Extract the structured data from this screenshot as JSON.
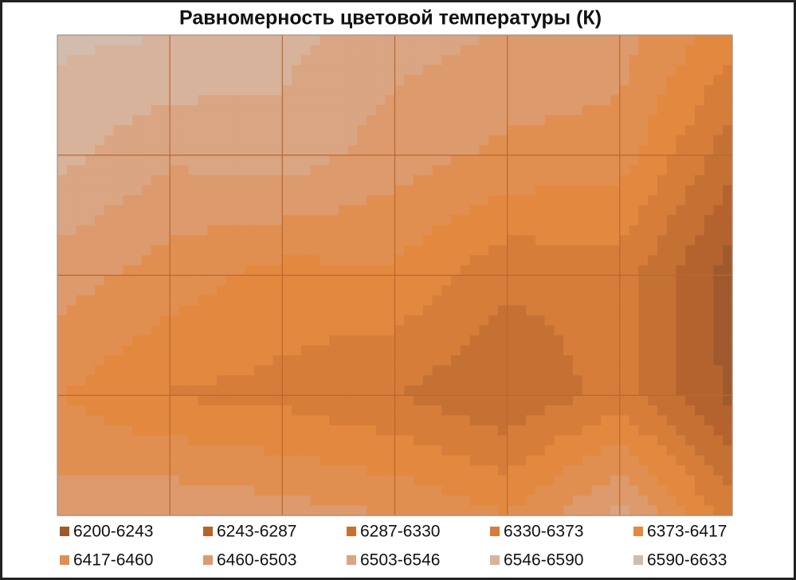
{
  "chart_data": {
    "type": "contour",
    "title": "Равномерность цветовой температуры (К)",
    "levels": [
      6200,
      6243,
      6287,
      6330,
      6373,
      6417,
      6460,
      6503,
      6546,
      6590,
      6633
    ],
    "series": [
      {
        "name": "6200-6243",
        "color": "#9e5a2c"
      },
      {
        "name": "6243-6287",
        "color": "#b5632e"
      },
      {
        "name": "6287-6330",
        "color": "#c67134"
      },
      {
        "name": "6330-6373",
        "color": "#d67d3a"
      },
      {
        "name": "6373-6417",
        "color": "#e3883f"
      },
      {
        "name": "6417-6460",
        "color": "#e08f50"
      },
      {
        "name": "6460-6503",
        "color": "#dd9a6c"
      },
      {
        "name": "6503-6546",
        "color": "#d9a583"
      },
      {
        "name": "6546-6590",
        "color": "#d8b39c"
      },
      {
        "name": "6590-6633",
        "color": "#d2bcae"
      }
    ],
    "z": [
      [
        6600,
        6590,
        6560,
        6520,
        6500,
        6480,
        6390
      ],
      [
        6560,
        6510,
        6530,
        6480,
        6450,
        6440,
        6300
      ],
      [
        6480,
        6440,
        6400,
        6410,
        6340,
        6350,
        6220
      ],
      [
        6420,
        6370,
        6360,
        6330,
        6290,
        6350,
        6230
      ],
      [
        6480,
        6500,
        6480,
        6460,
        6420,
        6520,
        6350
      ]
    ]
  }
}
